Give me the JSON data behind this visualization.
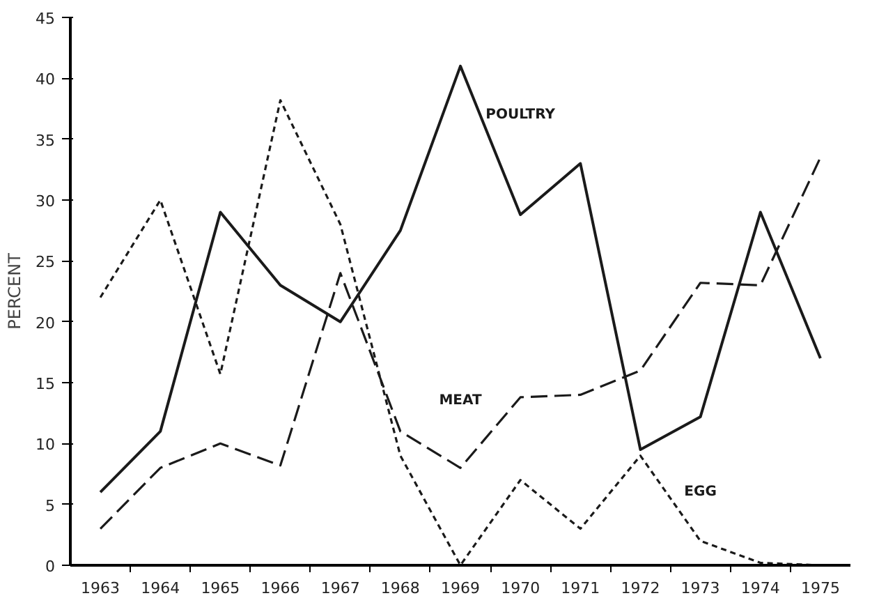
{
  "chart_data": {
    "type": "line",
    "ylabel": "PERCENT",
    "categories": [
      "1963",
      "1964",
      "1965",
      "1966",
      "1967",
      "1968",
      "1969",
      "1970",
      "1971",
      "1972",
      "1973",
      "1974",
      "1975"
    ],
    "series": [
      {
        "name": "POULTRY",
        "color": "#1a1a1a",
        "line_style": "solid",
        "values": [
          6,
          11,
          29,
          23,
          20,
          27.5,
          41,
          28.8,
          33,
          9.5,
          12.2,
          29,
          17
        ]
      },
      {
        "name": "MEAT",
        "color": "#1a1a1a",
        "line_style": "dashed",
        "values": [
          3,
          8,
          10,
          8.2,
          24,
          11,
          8,
          13.8,
          14,
          16,
          23.2,
          23,
          33.5
        ]
      },
      {
        "name": "EGG",
        "color": "#1a1a1a",
        "line_style": "dotted",
        "values": [
          22,
          30,
          15.7,
          38.2,
          28,
          9,
          0,
          7,
          3,
          9,
          2,
          0.2,
          0
        ]
      }
    ],
    "ylim": [
      0,
      45
    ],
    "yticks": [
      0,
      5,
      10,
      15,
      20,
      25,
      30,
      35,
      40,
      45
    ],
    "grid": false,
    "marker": "none"
  }
}
